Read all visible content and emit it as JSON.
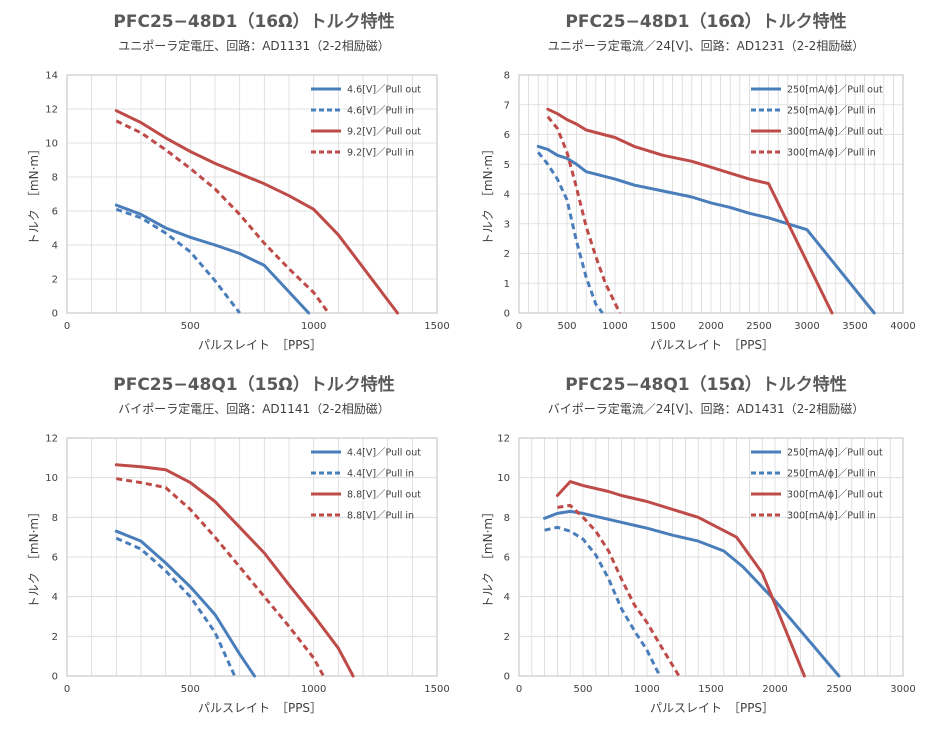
{
  "colors": {
    "blue": "#4a7ebb",
    "red": "#be4b48",
    "grid": "#d9d9d9"
  },
  "chart_data": [
    {
      "type": "line",
      "title": "PFC25−48D1（16Ω）トルク特性",
      "subtitle": "ユニポーラ定電圧、回路：AD1131（2-2相励磁）",
      "xlabel": "パルスレイト　［PPS］",
      "ylabel": "トルク　［mN·m］",
      "xlim": [
        0,
        1500
      ],
      "ylim": [
        0,
        14
      ],
      "xticks": [
        0,
        500,
        1000,
        1500
      ],
      "yticks": [
        0,
        2,
        4,
        6,
        8,
        10,
        12,
        14
      ],
      "xgrid_minor": 100,
      "legend": "top-right",
      "series": [
        {
          "name": "4.6[V]／Pull out",
          "color": "blue",
          "dash": false,
          "points": [
            [
              200,
              6.35
            ],
            [
              300,
              5.8
            ],
            [
              400,
              5.0
            ],
            [
              500,
              4.45
            ],
            [
              600,
              4.0
            ],
            [
              700,
              3.5
            ],
            [
              800,
              2.8
            ],
            [
              980,
              0
            ]
          ]
        },
        {
          "name": "4.6[V]／Pull in",
          "color": "blue",
          "dash": true,
          "points": [
            [
              200,
              6.1
            ],
            [
              300,
              5.6
            ],
            [
              400,
              4.7
            ],
            [
              500,
              3.6
            ],
            [
              600,
              1.9
            ],
            [
              700,
              0
            ]
          ]
        },
        {
          "name": "9.2[V]／Pull out",
          "color": "red",
          "dash": false,
          "points": [
            [
              200,
              11.9
            ],
            [
              300,
              11.2
            ],
            [
              400,
              10.3
            ],
            [
              500,
              9.5
            ],
            [
              600,
              8.8
            ],
            [
              700,
              8.2
            ],
            [
              800,
              7.6
            ],
            [
              900,
              6.9
            ],
            [
              1000,
              6.1
            ],
            [
              1100,
              4.6
            ],
            [
              1340,
              0
            ]
          ]
        },
        {
          "name": "9.2[V]／Pull in",
          "color": "red",
          "dash": true,
          "points": [
            [
              200,
              11.3
            ],
            [
              300,
              10.6
            ],
            [
              400,
              9.6
            ],
            [
              500,
              8.5
            ],
            [
              600,
              7.3
            ],
            [
              700,
              5.8
            ],
            [
              800,
              4.1
            ],
            [
              900,
              2.6
            ],
            [
              1000,
              1.2
            ],
            [
              1060,
              0
            ]
          ]
        }
      ]
    },
    {
      "type": "line",
      "title": "PFC25−48D1（16Ω）トルク特性",
      "subtitle": "ユニポーラ定電流／24[V]、回路：AD1231（2-2相励磁）",
      "xlabel": "パルスレイト　［PPS］",
      "ylabel": "トルク　［mN·m］",
      "xlim": [
        0,
        4000
      ],
      "ylim": [
        0,
        8
      ],
      "xticks": [
        0,
        500,
        1000,
        1500,
        2000,
        2500,
        3000,
        3500,
        4000
      ],
      "yticks": [
        0,
        1,
        2,
        3,
        4,
        5,
        6,
        7,
        8
      ],
      "xgrid_minor": 100,
      "legend": "top-right",
      "series": [
        {
          "name": "250[mA/ϕ]／Pull out",
          "color": "blue",
          "dash": false,
          "points": [
            [
              200,
              5.6
            ],
            [
              300,
              5.5
            ],
            [
              400,
              5.3
            ],
            [
              500,
              5.2
            ],
            [
              600,
              5.0
            ],
            [
              700,
              4.75
            ],
            [
              1000,
              4.5
            ],
            [
              1200,
              4.3
            ],
            [
              1500,
              4.1
            ],
            [
              1800,
              3.9
            ],
            [
              2000,
              3.7
            ],
            [
              2200,
              3.55
            ],
            [
              2400,
              3.35
            ],
            [
              2600,
              3.2
            ],
            [
              2800,
              3.0
            ],
            [
              3000,
              2.8
            ],
            [
              3700,
              0
            ]
          ]
        },
        {
          "name": "250[mA/ϕ]／Pull in",
          "color": "blue",
          "dash": true,
          "points": [
            [
              200,
              5.4
            ],
            [
              300,
              5.0
            ],
            [
              400,
              4.5
            ],
            [
              500,
              3.8
            ],
            [
              600,
              2.4
            ],
            [
              700,
              1.2
            ],
            [
              800,
              0.3
            ],
            [
              870,
              0
            ]
          ]
        },
        {
          "name": "300[mA/ϕ]／Pull out",
          "color": "red",
          "dash": false,
          "points": [
            [
              300,
              6.85
            ],
            [
              400,
              6.7
            ],
            [
              500,
              6.5
            ],
            [
              600,
              6.35
            ],
            [
              700,
              6.15
            ],
            [
              1000,
              5.9
            ],
            [
              1200,
              5.6
            ],
            [
              1500,
              5.3
            ],
            [
              1800,
              5.1
            ],
            [
              2000,
              4.9
            ],
            [
              2200,
              4.7
            ],
            [
              2400,
              4.5
            ],
            [
              2600,
              4.35
            ],
            [
              3260,
              0
            ]
          ]
        },
        {
          "name": "300[mA/ϕ]／Pull in",
          "color": "red",
          "dash": true,
          "points": [
            [
              300,
              6.6
            ],
            [
              400,
              6.2
            ],
            [
              500,
              5.4
            ],
            [
              600,
              4.2
            ],
            [
              700,
              2.9
            ],
            [
              800,
              1.9
            ],
            [
              900,
              1.0
            ],
            [
              1050,
              0
            ]
          ]
        }
      ]
    },
    {
      "type": "line",
      "title": "PFC25−48Q1（15Ω）トルク特性",
      "subtitle": "バイポーラ定電圧、回路：AD1141（2-2相励磁）",
      "xlabel": "パルスレイト　［PPS］",
      "ylabel": "トルク　［mN·m］",
      "xlim": [
        0,
        1500
      ],
      "ylim": [
        0,
        12
      ],
      "xticks": [
        0,
        500,
        1000,
        1500
      ],
      "yticks": [
        0,
        2,
        4,
        6,
        8,
        10,
        12
      ],
      "xgrid_minor": 100,
      "legend": "top-right",
      "series": [
        {
          "name": "4.4[V]／Pull out",
          "color": "blue",
          "dash": false,
          "points": [
            [
              200,
              7.3
            ],
            [
              300,
              6.8
            ],
            [
              400,
              5.7
            ],
            [
              500,
              4.5
            ],
            [
              600,
              3.1
            ],
            [
              700,
              1.1
            ],
            [
              760,
              0
            ]
          ]
        },
        {
          "name": "4.4[V]／Pull in",
          "color": "blue",
          "dash": true,
          "points": [
            [
              200,
              6.95
            ],
            [
              300,
              6.4
            ],
            [
              400,
              5.3
            ],
            [
              500,
              4.0
            ],
            [
              600,
              2.2
            ],
            [
              680,
              0
            ]
          ]
        },
        {
          "name": "8.8[V]／Pull out",
          "color": "red",
          "dash": false,
          "points": [
            [
              200,
              10.65
            ],
            [
              300,
              10.55
            ],
            [
              400,
              10.4
            ],
            [
              500,
              9.75
            ],
            [
              600,
              8.8
            ],
            [
              700,
              7.5
            ],
            [
              800,
              6.2
            ],
            [
              900,
              4.6
            ],
            [
              1000,
              3.05
            ],
            [
              1100,
              1.4
            ],
            [
              1160,
              0
            ]
          ]
        },
        {
          "name": "8.8[V]／Pull in",
          "color": "red",
          "dash": true,
          "points": [
            [
              200,
              9.95
            ],
            [
              300,
              9.75
            ],
            [
              400,
              9.5
            ],
            [
              500,
              8.4
            ],
            [
              600,
              7.0
            ],
            [
              700,
              5.5
            ],
            [
              800,
              4.0
            ],
            [
              900,
              2.5
            ],
            [
              1000,
              0.9
            ],
            [
              1040,
              0
            ]
          ]
        }
      ]
    },
    {
      "type": "line",
      "title": "PFC25−48Q1（15Ω）トルク特性",
      "subtitle": "バイポーラ定電流／24[V]、回路：AD1431（2-2相励磁）",
      "xlabel": "パルスレイト　［PPS］",
      "ylabel": "トルク　［mN·m］",
      "xlim": [
        0,
        3000
      ],
      "ylim": [
        0,
        12
      ],
      "xticks": [
        0,
        500,
        1000,
        1500,
        2000,
        2500,
        3000
      ],
      "yticks": [
        0,
        2,
        4,
        6,
        8,
        10,
        12
      ],
      "xgrid_minor": 100,
      "legend": "top-right",
      "series": [
        {
          "name": "250[mA/ϕ]／Pull out",
          "color": "blue",
          "dash": false,
          "points": [
            [
              200,
              7.95
            ],
            [
              300,
              8.2
            ],
            [
              400,
              8.3
            ],
            [
              500,
              8.2
            ],
            [
              800,
              7.75
            ],
            [
              1000,
              7.45
            ],
            [
              1200,
              7.1
            ],
            [
              1400,
              6.8
            ],
            [
              1600,
              6.3
            ],
            [
              1750,
              5.5
            ],
            [
              2000,
              3.8
            ],
            [
              2500,
              0
            ]
          ]
        },
        {
          "name": "250[mA/ϕ]／Pull in",
          "color": "blue",
          "dash": true,
          "points": [
            [
              200,
              7.35
            ],
            [
              300,
              7.5
            ],
            [
              400,
              7.3
            ],
            [
              500,
              6.9
            ],
            [
              600,
              6.1
            ],
            [
              700,
              4.9
            ],
            [
              800,
              3.4
            ],
            [
              900,
              2.3
            ],
            [
              1000,
              1.3
            ],
            [
              1100,
              0
            ]
          ]
        },
        {
          "name": "300[mA/ϕ]／Pull out",
          "color": "red",
          "dash": false,
          "points": [
            [
              300,
              9.1
            ],
            [
              400,
              9.8
            ],
            [
              500,
              9.6
            ],
            [
              700,
              9.3
            ],
            [
              800,
              9.1
            ],
            [
              1000,
              8.8
            ],
            [
              1200,
              8.4
            ],
            [
              1400,
              8.0
            ],
            [
              1700,
              7.0
            ],
            [
              1900,
              5.2
            ],
            [
              2230,
              0
            ]
          ]
        },
        {
          "name": "300[mA/ϕ]／Pull in",
          "color": "red",
          "dash": true,
          "points": [
            [
              300,
              8.5
            ],
            [
              400,
              8.6
            ],
            [
              500,
              8.0
            ],
            [
              600,
              7.3
            ],
            [
              700,
              6.3
            ],
            [
              800,
              4.9
            ],
            [
              900,
              3.6
            ],
            [
              1000,
              2.7
            ],
            [
              1100,
              1.6
            ],
            [
              1250,
              0
            ]
          ]
        }
      ]
    }
  ]
}
